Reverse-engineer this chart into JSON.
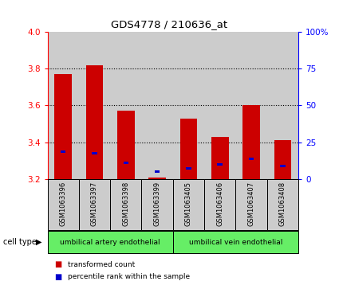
{
  "title": "GDS4778 / 210636_at",
  "samples": [
    "GSM1063396",
    "GSM1063397",
    "GSM1063398",
    "GSM1063399",
    "GSM1063405",
    "GSM1063406",
    "GSM1063407",
    "GSM1063408"
  ],
  "red_values": [
    3.77,
    3.82,
    3.57,
    3.21,
    3.53,
    3.43,
    3.6,
    3.41
  ],
  "blue_values": [
    3.35,
    3.34,
    3.29,
    3.24,
    3.26,
    3.28,
    3.31,
    3.27
  ],
  "ymin": 3.2,
  "ymax": 4.0,
  "yticks": [
    3.2,
    3.4,
    3.6,
    3.8,
    4.0
  ],
  "right_yticks": [
    0,
    25,
    50,
    75,
    100
  ],
  "right_ytick_labels": [
    "0",
    "25",
    "50",
    "75",
    "100%"
  ],
  "cell_type_groups": [
    {
      "label": "umbilical artery endothelial",
      "start": 0,
      "end": 4
    },
    {
      "label": "umbilical vein endothelial",
      "start": 4,
      "end": 8
    }
  ],
  "legend_items": [
    {
      "label": "transformed count",
      "color": "#cc0000"
    },
    {
      "label": "percentile rank within the sample",
      "color": "#0000cc"
    }
  ],
  "bar_width": 0.55,
  "bar_base": 3.2,
  "background_color": "#ffffff",
  "cell_type_label": "cell type",
  "group_bg_color": "#66ee66",
  "sample_bg_color": "#cccccc"
}
